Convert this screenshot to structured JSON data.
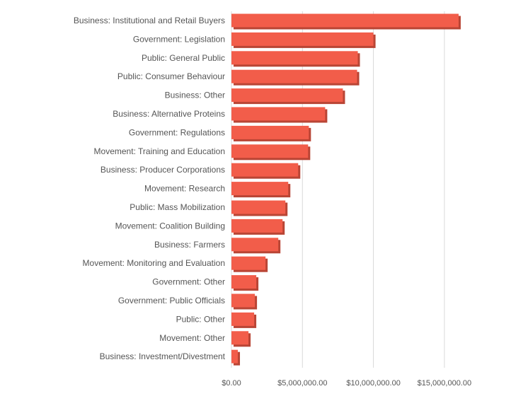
{
  "chart_data": {
    "type": "bar",
    "orientation": "horizontal",
    "categories": [
      "Business: Institutional and Retail Buyers",
      "Government: Legislation",
      "Public: General Public",
      "Public: Consumer Behaviour",
      "Business: Other",
      "Business: Alternative Proteins",
      "Government: Regulations",
      "Movement: Training and Education",
      "Business: Producer Corporations",
      "Movement: Research",
      "Public: Mass Mobilization",
      "Movement: Coalition Building",
      "Business: Farmers",
      "Movement: Monitoring and Evaluation",
      "Government: Other",
      "Government: Public Officials",
      "Public: Other",
      "Movement: Other",
      "Business: Investment/Divestment"
    ],
    "values": [
      16000000,
      10000000,
      8900000,
      8850000,
      7850000,
      6600000,
      5450000,
      5400000,
      4700000,
      4000000,
      3800000,
      3600000,
      3300000,
      2400000,
      1750000,
      1650000,
      1600000,
      1200000,
      450000
    ],
    "xlim": [
      0,
      17000000
    ],
    "xticks": [
      0,
      5000000,
      10000000,
      15000000
    ],
    "xtick_labels": [
      "$0.00",
      "$5,000,000.00",
      "$10,000,000.00",
      "$15,000,000.00"
    ],
    "title": "",
    "xlabel": "",
    "ylabel": "",
    "grid": "vertical",
    "bar_color": "#f25d4a",
    "bar_shadow_color": "#b94535",
    "gridline_color": "#d9d9d9",
    "label_color": "#555555"
  }
}
